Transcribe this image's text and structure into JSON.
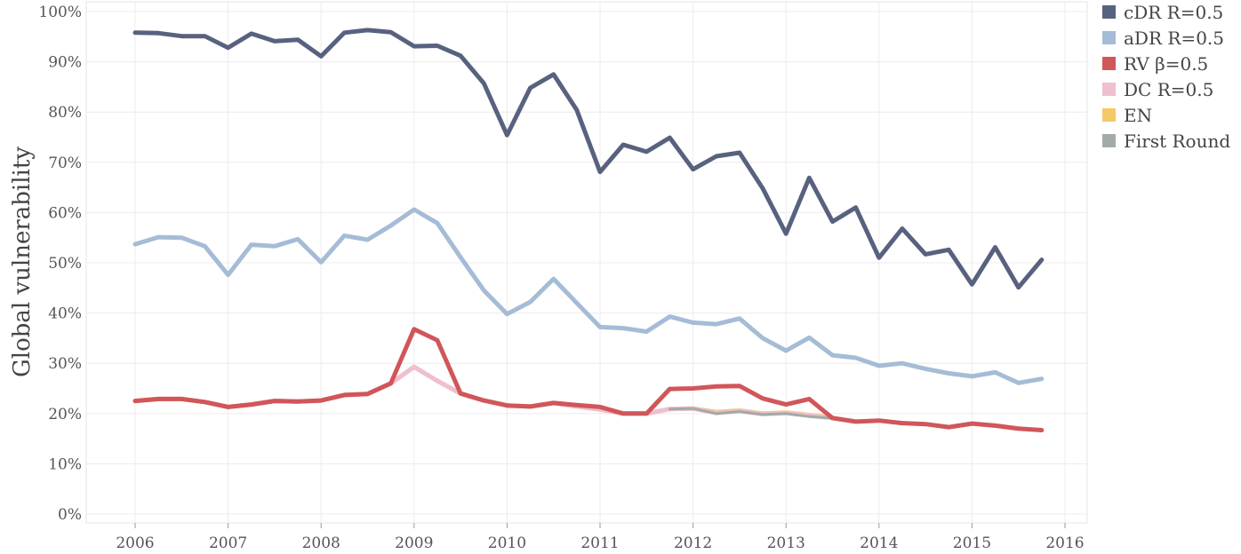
{
  "chart_data": {
    "type": "line",
    "title": "",
    "xlabel": "",
    "ylabel": "Global vulnerability",
    "xlim": [
      2005.5,
      2016.2
    ],
    "ylim": [
      -2,
      102
    ],
    "xticks": [
      2006,
      2007,
      2008,
      2009,
      2010,
      2011,
      2012,
      2013,
      2014,
      2015,
      2016
    ],
    "xtick_labels": [
      "2006",
      "2007",
      "2008",
      "2009",
      "2010",
      "2011",
      "2012",
      "2013",
      "2014",
      "2015",
      "2016"
    ],
    "yticks": [
      0,
      10,
      20,
      30,
      40,
      50,
      60,
      70,
      80,
      90,
      100
    ],
    "ytick_labels": [
      "0%",
      "10%",
      "20%",
      "30%",
      "40%",
      "50%",
      "60%",
      "70%",
      "80%",
      "90%",
      "100%"
    ],
    "grid": true,
    "legend_position": "right",
    "series": [
      {
        "name": "cDR R=0.5",
        "color": "#58627f",
        "x": [
          2006,
          2006.25,
          2006.5,
          2006.75,
          2007,
          2007.25,
          2007.5,
          2007.75,
          2008,
          2008.25,
          2008.5,
          2008.75,
          2009,
          2009.25,
          2009.5,
          2009.75,
          2010,
          2010.25,
          2010.5,
          2010.75,
          2011,
          2011.25,
          2011.5,
          2011.75,
          2012,
          2012.25,
          2012.5,
          2012.75,
          2013,
          2013.25,
          2013.5,
          2013.75,
          2014,
          2014.25,
          2014.5,
          2014.75,
          2015,
          2015.25,
          2015.5,
          2015.75
        ],
        "values": [
          95.8,
          95.7,
          95.1,
          95.1,
          92.8,
          95.6,
          94.1,
          94.4,
          91.1,
          95.8,
          96.3,
          95.9,
          93.1,
          93.2,
          91.2,
          85.7,
          75.4,
          84.8,
          87.5,
          80.4,
          68.1,
          73.5,
          72.1,
          74.9,
          68.6,
          71.2,
          71.9,
          64.8,
          55.8,
          66.9,
          58.2,
          61.0,
          51.0,
          56.8,
          51.7,
          52.6,
          45.7,
          53.1,
          45.1,
          50.6
        ]
      },
      {
        "name": "aDR R=0.5",
        "color": "#a5bcd6",
        "x": [
          2006,
          2006.25,
          2006.5,
          2006.75,
          2007,
          2007.25,
          2007.5,
          2007.75,
          2008,
          2008.25,
          2008.5,
          2008.75,
          2009,
          2009.25,
          2009.5,
          2009.75,
          2010,
          2010.25,
          2010.5,
          2010.75,
          2011,
          2011.25,
          2011.5,
          2011.75,
          2012,
          2012.25,
          2012.5,
          2012.75,
          2013,
          2013.25,
          2013.5,
          2013.75,
          2014,
          2014.25,
          2014.5,
          2014.75,
          2015,
          2015.25,
          2015.5,
          2015.75
        ],
        "values": [
          53.7,
          55.1,
          55.0,
          53.3,
          47.6,
          53.6,
          53.3,
          54.7,
          50.1,
          55.4,
          54.6,
          57.4,
          60.6,
          57.9,
          51.1,
          44.5,
          39.8,
          42.2,
          46.8,
          42.0,
          37.2,
          37.0,
          36.3,
          39.3,
          38.1,
          37.8,
          38.9,
          35.0,
          32.5,
          35.1,
          31.6,
          31.1,
          29.5,
          30.0,
          28.9,
          28.0,
          27.4,
          28.2,
          26.1,
          26.9
        ]
      },
      {
        "name": "RV β=0.5",
        "color": "#d0565a",
        "x": [
          2006,
          2006.25,
          2006.5,
          2006.75,
          2007,
          2007.25,
          2007.5,
          2007.75,
          2008,
          2008.25,
          2008.5,
          2008.75,
          2009,
          2009.25,
          2009.5,
          2009.75,
          2010,
          2010.25,
          2010.5,
          2010.75,
          2011,
          2011.25,
          2011.5,
          2011.75,
          2012,
          2012.25,
          2012.5,
          2012.75,
          2013,
          2013.25,
          2013.5,
          2013.75,
          2014,
          2014.25,
          2014.5,
          2014.75,
          2015,
          2015.25,
          2015.5,
          2015.75
        ],
        "values": [
          22.5,
          22.9,
          22.9,
          22.3,
          21.3,
          21.8,
          22.5,
          22.4,
          22.6,
          23.7,
          23.9,
          26.0,
          36.8,
          34.6,
          24.0,
          22.6,
          21.6,
          21.4,
          22.1,
          21.7,
          21.3,
          20.0,
          20.0,
          24.9,
          25.0,
          25.4,
          25.5,
          23.0,
          21.8,
          22.9,
          19.1,
          18.4,
          18.6,
          18.1,
          17.9,
          17.3,
          18.0,
          17.6,
          17.0,
          16.7
        ]
      },
      {
        "name": "DC R=0.5",
        "color": "#f0bfd0",
        "x": [
          2006,
          2006.25,
          2006.5,
          2006.75,
          2007,
          2007.25,
          2007.5,
          2007.75,
          2008,
          2008.25,
          2008.5,
          2008.75,
          2009,
          2009.25,
          2009.5,
          2009.75,
          2010,
          2010.25,
          2010.5,
          2010.75,
          2011,
          2011.25,
          2011.5,
          2011.75,
          2012,
          2012.25,
          2012.5,
          2012.75,
          2013,
          2013.25,
          2013.5
        ],
        "values": [
          22.5,
          22.9,
          22.9,
          22.3,
          21.3,
          21.8,
          22.5,
          22.4,
          22.6,
          23.7,
          23.9,
          26.0,
          29.3,
          26.5,
          24.0,
          22.6,
          21.6,
          21.4,
          22.1,
          21.4,
          20.8,
          20.0,
          20.0,
          20.9,
          21.0,
          20.1,
          20.5,
          19.9,
          20.1,
          19.6,
          19.1
        ]
      },
      {
        "name": "EN",
        "color": "#f5c868",
        "x": [
          2006,
          2006.25,
          2006.5,
          2006.75,
          2007,
          2007.25,
          2007.5,
          2007.75,
          2008,
          2008.25,
          2008.5,
          2008.75,
          2009,
          2009.25,
          2009.5,
          2009.75,
          2010,
          2010.25,
          2010.5,
          2010.75,
          2011,
          2011.25,
          2011.5,
          2011.75,
          2012,
          2012.25,
          2012.5,
          2012.75,
          2013,
          2013.25,
          2013.5
        ],
        "values": [
          22.5,
          22.9,
          22.9,
          22.3,
          21.3,
          21.8,
          22.5,
          22.4,
          22.6,
          23.7,
          23.9,
          26.0,
          29.3,
          26.5,
          24.0,
          22.6,
          21.6,
          21.4,
          22.1,
          21.4,
          20.8,
          20.0,
          20.0,
          20.9,
          21.0,
          20.3,
          20.6,
          20.0,
          20.2,
          19.7,
          19.2
        ]
      },
      {
        "name": "First Round",
        "color": "#a2aba7",
        "x": [
          2011.75,
          2012,
          2012.25,
          2012.5,
          2012.75,
          2013,
          2013.25,
          2013.5
        ],
        "values": [
          20.9,
          21.0,
          20.0,
          20.4,
          19.8,
          20.0,
          19.4,
          19.1
        ]
      }
    ]
  }
}
